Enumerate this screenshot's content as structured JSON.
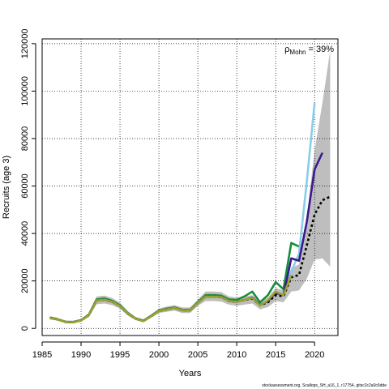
{
  "chart_data": {
    "type": "line",
    "xlabel": "Years",
    "ylabel": "Recruits (age 3)",
    "xlim": [
      1985,
      2023
    ],
    "ylim": [
      -3000,
      122000
    ],
    "x_ticks": [
      1985,
      1990,
      1995,
      2000,
      2005,
      2010,
      2015,
      2020
    ],
    "y_ticks": [
      0,
      20000,
      40000,
      60000,
      80000,
      100000,
      120000
    ],
    "grid": true,
    "annotation": {
      "rho_symbol": "ρ",
      "rho_subscript": "Mohn",
      "rho_value": " = 39%"
    },
    "caption": "stockassessment.org, Scallops_SH_a16_1, r17754, gitsc2c2a0c6dde",
    "band": {
      "color": "#bebebe",
      "x": [
        1986,
        1987,
        1988,
        1989,
        1990,
        1991,
        1992,
        1993,
        1994,
        1995,
        1996,
        1997,
        1998,
        1999,
        2000,
        2001,
        2002,
        2003,
        2004,
        2005,
        2006,
        2007,
        2008,
        2009,
        2010,
        2011,
        2012,
        2013,
        2014,
        2015,
        2016,
        2017,
        2018,
        2019,
        2020,
        2021,
        2022
      ],
      "lower": [
        3800,
        3200,
        2300,
        2200,
        2900,
        4800,
        10200,
        10500,
        9800,
        8300,
        5400,
        3500,
        2600,
        4500,
        6500,
        7000,
        7500,
        6500,
        6500,
        9500,
        11500,
        11500,
        11300,
        10000,
        9500,
        10000,
        10500,
        8000,
        9000,
        11500,
        11000,
        15500,
        16000,
        21000,
        29000,
        29500,
        26000
      ],
      "upper": [
        5000,
        4300,
        3300,
        3200,
        4000,
        6400,
        13500,
        13800,
        12800,
        10800,
        7300,
        4800,
        3800,
        5900,
        8400,
        9200,
        9800,
        8800,
        8800,
        12200,
        15500,
        15500,
        15300,
        13500,
        13000,
        13500,
        14000,
        11500,
        13000,
        17000,
        16000,
        25500,
        27000,
        47000,
        75000,
        95000,
        117000
      ]
    },
    "series": [
      {
        "color": "#1a8c3c",
        "dashed": false,
        "x": [
          1986,
          1987,
          1988,
          1989,
          1990,
          1991,
          1992,
          1993,
          1994,
          1995,
          1996,
          1997,
          1998,
          1999,
          2000,
          2001,
          2002,
          2003,
          2004,
          2005,
          2006,
          2007,
          2008,
          2009,
          2010,
          2011,
          2012,
          2013,
          2014,
          2015,
          2016,
          2017,
          2018
        ],
        "values": [
          4600,
          3900,
          2800,
          2700,
          3500,
          5800,
          12200,
          12600,
          11600,
          9700,
          6400,
          4200,
          3300,
          5300,
          7500,
          8300,
          8800,
          7800,
          7800,
          11000,
          14000,
          14000,
          13800,
          12200,
          12000,
          13500,
          15500,
          11000,
          14000,
          19500,
          16500,
          36000,
          34500
        ]
      },
      {
        "color": "#87ceeb",
        "dashed": false,
        "x": [
          1986,
          1987,
          1988,
          1989,
          1990,
          1991,
          1992,
          1993,
          1994,
          1995,
          1996,
          1997,
          1998,
          1999,
          2000,
          2001,
          2002,
          2003,
          2004,
          2005,
          2006,
          2007,
          2008,
          2009,
          2010,
          2011,
          2012,
          2013,
          2014,
          2015,
          2016,
          2017,
          2018,
          2019,
          2020
        ],
        "values": [
          4400,
          3800,
          2700,
          2600,
          3400,
          5600,
          11800,
          12100,
          11200,
          9400,
          6200,
          4100,
          3100,
          5100,
          7300,
          8000,
          8600,
          7600,
          7600,
          10700,
          13400,
          13400,
          13200,
          11600,
          11200,
          12000,
          13000,
          9800,
          11500,
          15500,
          14500,
          24000,
          31500,
          62000,
          95000
        ]
      },
      {
        "color": "#3a1a8c",
        "dashed": false,
        "x": [
          1986,
          1987,
          1988,
          1989,
          1990,
          1991,
          1992,
          1993,
          1994,
          1995,
          1996,
          1997,
          1998,
          1999,
          2000,
          2001,
          2002,
          2003,
          2004,
          2005,
          2006,
          2007,
          2008,
          2009,
          2010,
          2011,
          2012,
          2013,
          2014,
          2015,
          2016,
          2017,
          2018,
          2019,
          2020,
          2021
        ],
        "values": [
          4400,
          3800,
          2700,
          2600,
          3400,
          5600,
          11800,
          12100,
          11200,
          9400,
          6200,
          4100,
          3100,
          5100,
          7300,
          8000,
          8600,
          7600,
          7600,
          10700,
          13400,
          13400,
          13200,
          11600,
          11200,
          12000,
          13000,
          9800,
          11500,
          15000,
          14000,
          29500,
          28500,
          45000,
          67000,
          74000
        ]
      },
      {
        "color": "#000000",
        "dashed": true,
        "x": [
          1986,
          1987,
          1988,
          1989,
          1990,
          1991,
          1992,
          1993,
          1994,
          1995,
          1996,
          1997,
          1998,
          1999,
          2000,
          2001,
          2002,
          2003,
          2004,
          2005,
          2006,
          2007,
          2008,
          2009,
          2010,
          2011,
          2012,
          2013,
          2014,
          2015,
          2016,
          2017,
          2018,
          2019,
          2020,
          2021,
          2022
        ],
        "values": [
          4400,
          3800,
          2700,
          2600,
          3400,
          5600,
          11800,
          12100,
          11200,
          9400,
          6200,
          4100,
          3100,
          5100,
          7300,
          8000,
          8600,
          7600,
          7600,
          10700,
          13400,
          13400,
          13200,
          11600,
          11200,
          12000,
          12500,
          9800,
          11000,
          14000,
          13500,
          21500,
          22500,
          35000,
          48000,
          54000,
          55500
        ]
      },
      {
        "color": "#9aa32c",
        "dashed": false,
        "x": [
          1986,
          1987,
          1988,
          1989,
          1990,
          1991,
          1992,
          1993,
          1994,
          1995,
          1996,
          1997,
          1998,
          1999,
          2000,
          2001,
          2002,
          2003,
          2004,
          2005,
          2006,
          2007,
          2008,
          2009,
          2010,
          2011,
          2012,
          2013,
          2014,
          2015,
          2016,
          2017
        ],
        "values": [
          4400,
          3800,
          2700,
          2600,
          3400,
          5600,
          11800,
          12100,
          11200,
          9400,
          6200,
          4100,
          3100,
          5100,
          7300,
          8000,
          8600,
          7600,
          7600,
          10700,
          13400,
          13400,
          13200,
          11600,
          11200,
          12000,
          12800,
          9600,
          11800,
          15500,
          14000,
          22500
        ]
      }
    ]
  }
}
